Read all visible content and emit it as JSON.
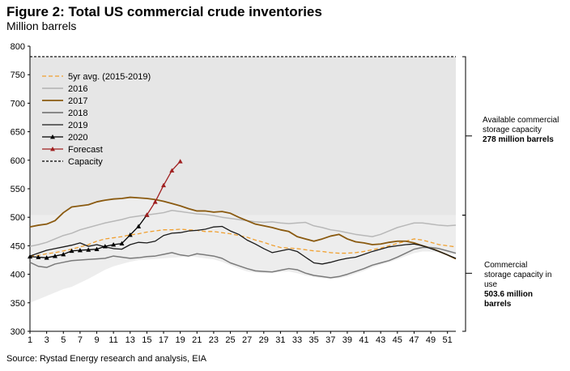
{
  "chart_data": {
    "type": "line",
    "title": "Figure 2: Total US commercial crude inventories",
    "subtitle": "Million barrels",
    "source": "Source: Rystad Energy research and analysis, EIA",
    "xlabel": "",
    "ylabel": "",
    "xlim": [
      1,
      52
    ],
    "ylim": [
      300,
      800
    ],
    "x_ticks": [
      "1",
      "3",
      "5",
      "7",
      "9",
      "11",
      "13",
      "15",
      "17",
      "19",
      "21",
      "23",
      "25",
      "27",
      "29",
      "31",
      "33",
      "35",
      "37",
      "39",
      "41",
      "43",
      "45",
      "47",
      "49",
      "51"
    ],
    "y_ticks": [
      "300",
      "350",
      "400",
      "450",
      "500",
      "550",
      "600",
      "650",
      "700",
      "750",
      "800"
    ],
    "capacity_total": 781.6,
    "capacity_in_use": 503.6,
    "legend": {
      "avg": "5yr avg. (2015-2019)",
      "s2016": "2016",
      "s2017": "2017",
      "s2018": "2018",
      "s2019": "2019",
      "s2020": "2020",
      "forecast": "Forecast",
      "capacity": "Capacity"
    },
    "annotations": {
      "available_line1": "Available commercial",
      "available_line2": "storage capacity",
      "available_value": "278 million barrels",
      "in_use_line1": "Commercial",
      "in_use_line2": "storage capacity in",
      "in_use_line3": "use",
      "in_use_value1": "503.6 million",
      "in_use_value2": "barrels"
    },
    "colors": {
      "avg": "#f0a030",
      "s2016": "#b8b8b8",
      "s2017": "#8a5a10",
      "s2018": "#7a7a7a",
      "s2019": "#1a1a1a",
      "s2020": "#000000",
      "forecast": "#a02020",
      "capacity": "#000000",
      "available_fill": "#e6e6e6",
      "range_fill": "#ededed"
    },
    "series": [
      {
        "name": "5yr avg. (2015-2019)",
        "key": "avg",
        "x_start": 1,
        "values": [
          432,
          433,
          436,
          438,
          441,
          444,
          448,
          452,
          458,
          462,
          464,
          466,
          469,
          471,
          474,
          476,
          478,
          478,
          479,
          478,
          477,
          475,
          475,
          473,
          471,
          468,
          465,
          460,
          456,
          451,
          447,
          446,
          445,
          443,
          441,
          440,
          438,
          437,
          437,
          438,
          440,
          443,
          446,
          450,
          454,
          458,
          462,
          460,
          456,
          452,
          450,
          448
        ]
      },
      {
        "name": "2016",
        "key": "s2016",
        "x_start": 1,
        "values": [
          449,
          452,
          456,
          462,
          468,
          472,
          478,
          482,
          486,
          490,
          493,
          496,
          500,
          502,
          504,
          506,
          508,
          512,
          510,
          508,
          506,
          505,
          503,
          500,
          498,
          496,
          494,
          492,
          491,
          492,
          490,
          489,
          490,
          491,
          485,
          482,
          478,
          476,
          473,
          470,
          468,
          466,
          470,
          476,
          482,
          486,
          490,
          490,
          488,
          486,
          485,
          486
        ]
      },
      {
        "name": "2017",
        "key": "s2017",
        "x_start": 1,
        "values": [
          483,
          486,
          488,
          494,
          508,
          518,
          520,
          522,
          527,
          530,
          532,
          533,
          535,
          534,
          533,
          531,
          528,
          524,
          520,
          515,
          511,
          511,
          509,
          510,
          507,
          500,
          494,
          488,
          485,
          482,
          478,
          475,
          466,
          462,
          458,
          462,
          467,
          470,
          462,
          457,
          455,
          452,
          453,
          456,
          458,
          458,
          455,
          450,
          446,
          440,
          434,
          427
        ]
      },
      {
        "name": "2018",
        "key": "s2018",
        "x_start": 1,
        "values": [
          421,
          414,
          412,
          418,
          421,
          424,
          425,
          426,
          427,
          428,
          432,
          430,
          428,
          429,
          431,
          432,
          435,
          438,
          434,
          432,
          436,
          434,
          432,
          428,
          420,
          415,
          410,
          406,
          405,
          404,
          407,
          410,
          408,
          402,
          398,
          396,
          394,
          396,
          400,
          405,
          410,
          416,
          420,
          424,
          430,
          437,
          444,
          447,
          447,
          445,
          441,
          437
        ]
      },
      {
        "name": "2019",
        "key": "s2019",
        "x_start": 1,
        "values": [
          432,
          437,
          442,
          445,
          448,
          451,
          455,
          449,
          452,
          448,
          445,
          444,
          452,
          456,
          455,
          458,
          468,
          472,
          473,
          476,
          477,
          479,
          483,
          484,
          476,
          470,
          460,
          453,
          445,
          438,
          441,
          444,
          440,
          430,
          420,
          418,
          421,
          425,
          428,
          430,
          435,
          440,
          444,
          448,
          450,
          452,
          453,
          450,
          445,
          440,
          434,
          428
        ]
      },
      {
        "name": "2020",
        "key": "s2020",
        "x_start": 1,
        "marker": "triangle",
        "values": [
          431,
          430,
          429,
          432,
          435,
          441,
          442,
          443,
          444,
          449,
          452,
          454,
          469,
          484,
          504
        ]
      },
      {
        "name": "Forecast",
        "key": "forecast",
        "x_start": 15,
        "marker": "triangle",
        "values": [
          504,
          527,
          556,
          582,
          598
        ]
      }
    ],
    "range_band": {
      "name": "2015-2019 range",
      "x_start": 1,
      "min": [
        350,
        356,
        362,
        368,
        374,
        378,
        385,
        392,
        400,
        408,
        414,
        418,
        422,
        425,
        426,
        427,
        428,
        429,
        430,
        432,
        430,
        428,
        426,
        422,
        416,
        410,
        405,
        403,
        402,
        403,
        404,
        405,
        402,
        398,
        395,
        393,
        392,
        393,
        396,
        401,
        406,
        412,
        417,
        421,
        426,
        432,
        437,
        440,
        440,
        438,
        436,
        434
      ],
      "max": [
        503.6,
        503.6,
        503.6,
        503.6,
        508,
        518,
        520,
        522,
        527,
        530,
        532,
        533,
        535,
        534,
        533,
        531,
        528,
        524,
        520,
        515,
        511,
        511,
        509,
        510,
        507,
        503.6,
        503.6,
        503.6,
        503.6,
        503.6,
        503.6,
        503.6,
        503.6,
        503.6,
        503.6,
        503.6,
        503.6,
        503.6,
        503.6,
        503.6,
        503.6,
        503.6,
        503.6,
        503.6,
        503.6,
        503.6,
        503.6,
        503.6,
        503.6,
        503.6,
        503.6,
        503.6
      ]
    }
  }
}
